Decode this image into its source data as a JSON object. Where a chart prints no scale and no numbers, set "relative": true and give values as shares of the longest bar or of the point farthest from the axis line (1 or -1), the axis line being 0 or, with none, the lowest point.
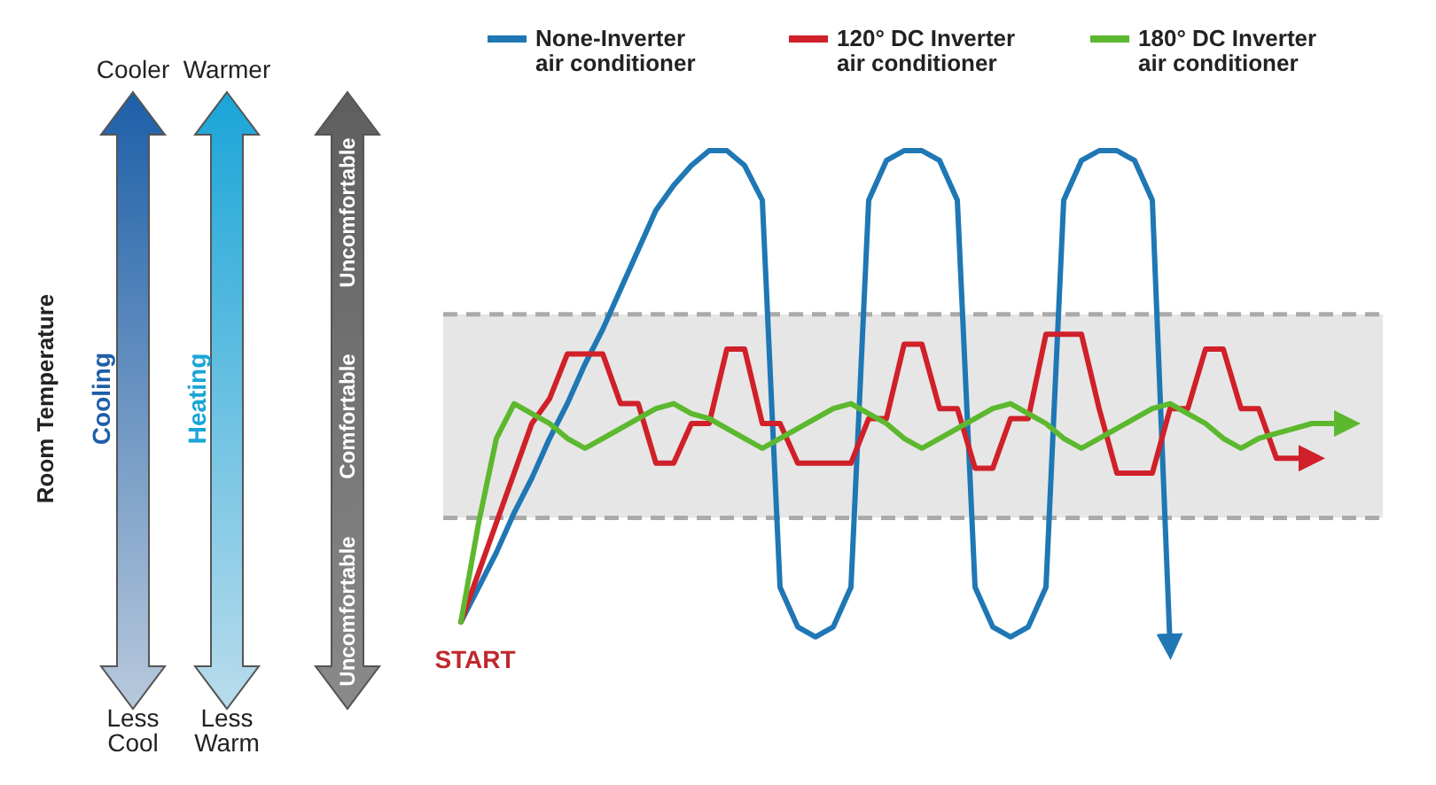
{
  "chart_data": {
    "type": "line",
    "relative": true,
    "legend": "top",
    "categories": [
      null,
      null,
      null,
      null,
      null,
      null,
      null,
      null,
      null,
      null,
      null,
      null,
      null,
      null,
      null,
      null,
      null,
      null,
      null,
      null,
      null,
      null,
      null,
      null,
      null,
      null,
      null,
      null,
      null,
      null,
      null,
      null,
      null,
      null,
      null,
      null,
      null,
      null,
      null,
      null,
      null,
      null,
      null,
      null,
      null,
      null,
      null,
      null,
      null,
      null,
      null
    ],
    "bands": [
      {
        "axis": "y",
        "from": 0.26,
        "to": 0.67,
        "color": "#e6e6e6"
      }
    ],
    "ref_lines": [
      {
        "axis": "y",
        "value": 0.67,
        "color": "#aaaaaa",
        "line_style": "dashed"
      },
      {
        "axis": "y",
        "value": 0.26,
        "color": "#aaaaaa",
        "line_style": "dashed"
      }
    ],
    "annotations": [
      "Room Temperature",
      "Cooler",
      "Warmer",
      "Less Cool",
      "Less Warm",
      "Cooling",
      "Heating",
      "Uncomfortable",
      "Comfortable",
      "Uncomfortable",
      "START"
    ],
    "series": [
      {
        "name": "None-Inverter air conditioner",
        "color": "#1f77b4",
        "values": [
          0.05,
          0.12,
          0.19,
          0.27,
          0.34,
          0.42,
          0.49,
          0.57,
          0.64,
          0.72,
          0.8,
          0.88,
          0.93,
          0.97,
          1,
          1,
          0.97,
          0.9,
          0.12,
          0.04,
          0.02,
          0.04,
          0.12,
          0.9,
          0.98,
          1,
          1,
          0.98,
          0.9,
          0.12,
          0.04,
          0.02,
          0.04,
          0.12,
          0.9,
          0.98,
          1,
          1,
          0.98,
          0.9,
          0,
          null,
          null,
          null,
          null,
          null,
          null,
          null,
          null,
          null,
          null
        ]
      },
      {
        "name": "120° DC Inverter air conditioner",
        "color": "#d0202a",
        "values": [
          0.05,
          0.15,
          0.25,
          0.35,
          0.45,
          0.5,
          0.59,
          0.59,
          0.59,
          0.49,
          0.49,
          0.37,
          0.37,
          0.45,
          0.45,
          0.6,
          0.6,
          0.45,
          0.45,
          0.37,
          0.37,
          0.37,
          0.37,
          0.46,
          0.46,
          0.61,
          0.61,
          0.48,
          0.48,
          0.36,
          0.36,
          0.46,
          0.46,
          0.63,
          0.63,
          0.63,
          0.48,
          0.35,
          0.35,
          0.35,
          0.48,
          0.48,
          0.6,
          0.6,
          0.48,
          0.48,
          0.38,
          0.38,
          0.38,
          null,
          null
        ]
      },
      {
        "name": "180° DC Inverter air conditioner",
        "color": "#5cb82e",
        "values": [
          0.05,
          0.25,
          0.42,
          0.49,
          0.47,
          0.45,
          0.42,
          0.4,
          0.42,
          0.44,
          0.46,
          0.48,
          0.49,
          0.47,
          0.46,
          0.44,
          0.42,
          0.4,
          0.42,
          0.44,
          0.46,
          0.48,
          0.49,
          0.47,
          0.45,
          0.42,
          0.4,
          0.42,
          0.44,
          0.46,
          0.48,
          0.49,
          0.47,
          0.45,
          0.42,
          0.4,
          0.42,
          0.44,
          0.46,
          0.48,
          0.49,
          0.47,
          0.45,
          0.42,
          0.4,
          0.42,
          0.43,
          0.44,
          0.45,
          0.45,
          0.45
        ]
      }
    ]
  }
}
